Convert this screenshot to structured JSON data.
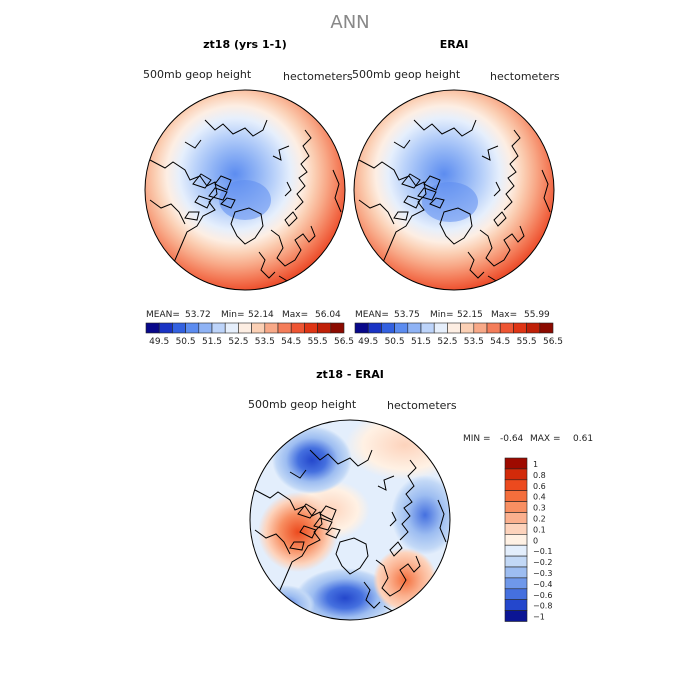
{
  "page_title": "ANN",
  "panels": [
    {
      "title": "zt18 (yrs 1-1)",
      "left_label": "500mb  geop  height",
      "right_label": "hectometers",
      "stats": {
        "mean_label": "MEAN=",
        "mean": "53.72",
        "min_label": "Min=",
        "min": "52.14",
        "max_label": "Max=",
        "max": "56.04"
      }
    },
    {
      "title": "ERAI",
      "left_label": "500mb  geop  height",
      "right_label": "hectometers",
      "stats": {
        "mean_label": "MEAN=",
        "mean": "53.75",
        "min_label": "Min=",
        "min": "52.15",
        "max_label": "Max=",
        "max": "55.99"
      }
    }
  ],
  "abs_colorbar": {
    "ticks": [
      "49.5",
      "50.5",
      "51.5",
      "52.5",
      "53.5",
      "54.5",
      "55.5",
      "56.5"
    ],
    "colors": [
      "#08088a",
      "#1a33c4",
      "#3361e0",
      "#5c8cf0",
      "#8fb3f5",
      "#bdd4fa",
      "#e6effc",
      "#fdeee3",
      "#fbd0b5",
      "#f8a988",
      "#f47d5a",
      "#ee5533",
      "#df3515",
      "#c02008",
      "#8b0a00"
    ]
  },
  "diff_panel": {
    "title": "zt18 - ERAI",
    "left_label": "500mb  geop  height",
    "right_label": "hectometers",
    "min_label": "MIN  =",
    "min": "-0.64",
    "max_label": "MAX  =",
    "max": "0.61"
  },
  "diff_colorbar": {
    "labels": [
      "1",
      "0.8",
      "0.6",
      "0.4",
      "0.3",
      "0.2",
      "0.1",
      "0",
      "−0.1",
      "−0.2",
      "−0.3",
      "−0.4",
      "−0.6",
      "−0.8",
      "−1"
    ],
    "colors": [
      "#9e0a00",
      "#d22a0a",
      "#ec4a1e",
      "#f46e3c",
      "#f88f62",
      "#fbb08e",
      "#fdd3bc",
      "#fff1e4",
      "#e3eefc",
      "#c2d8f6",
      "#9dbdf1",
      "#6f98ea",
      "#4570df",
      "#2447cc",
      "#0b1594"
    ]
  },
  "chart_data": [
    {
      "type": "heatmap",
      "title": "zt18 (yrs 1-1)",
      "projection": "north polar stereographic",
      "variable": "500mb geop height",
      "units": "hectometers",
      "mean": 53.72,
      "min": 52.14,
      "max": 56.04,
      "colorbar_ticks": [
        49.5,
        50.5,
        51.5,
        52.5,
        53.5,
        54.5,
        55.5,
        56.5
      ]
    },
    {
      "type": "heatmap",
      "title": "ERAI",
      "projection": "north polar stereographic",
      "variable": "500mb geop height",
      "units": "hectometers",
      "mean": 53.75,
      "min": 52.15,
      "max": 55.99,
      "colorbar_ticks": [
        49.5,
        50.5,
        51.5,
        52.5,
        53.5,
        54.5,
        55.5,
        56.5
      ]
    },
    {
      "type": "heatmap",
      "title": "zt18 - ERAI",
      "projection": "north polar stereographic",
      "variable": "500mb geop height",
      "units": "hectometers",
      "min": -0.64,
      "max": 0.61,
      "colorbar_levels": [
        1,
        0.8,
        0.6,
        0.4,
        0.3,
        0.2,
        0.1,
        0,
        -0.1,
        -0.2,
        -0.3,
        -0.4,
        -0.6,
        -0.8,
        -1
      ]
    }
  ]
}
